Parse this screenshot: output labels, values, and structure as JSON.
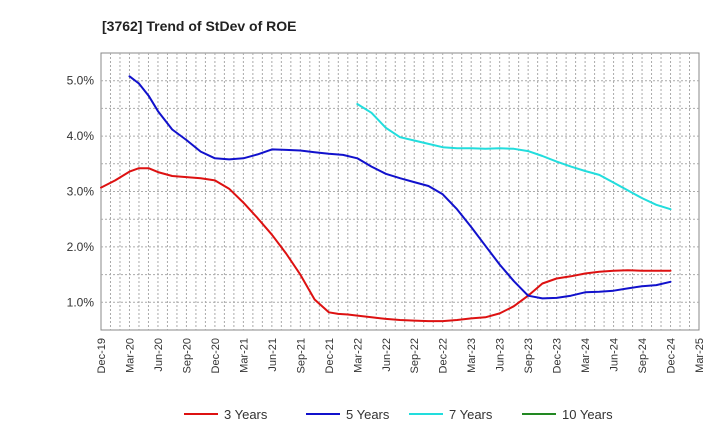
{
  "chart_data": {
    "type": "line",
    "title": "[3762]  Trend of StDev of ROE",
    "xlabel": "",
    "ylabel": "",
    "x_ticks": [
      "Dec-19",
      "Mar-20",
      "Jun-20",
      "Sep-20",
      "Dec-20",
      "Mar-21",
      "Jun-21",
      "Sep-21",
      "Dec-21",
      "Mar-22",
      "Jun-22",
      "Sep-22",
      "Dec-22",
      "Mar-23",
      "Jun-23",
      "Sep-23",
      "Dec-23",
      "Mar-24",
      "Jun-24",
      "Sep-24",
      "Dec-24",
      "Mar-25"
    ],
    "y_ticks": [
      "1.0%",
      "2.0%",
      "3.0%",
      "4.0%",
      "5.0%"
    ],
    "y_tick_values": [
      1.0,
      2.0,
      3.0,
      4.0,
      5.0
    ],
    "ylim": [
      0.5,
      5.5
    ],
    "grid": true,
    "legend_position": "bottom",
    "series": [
      {
        "name": "3 Years",
        "color": "#dd1111",
        "x": [
          0,
          0.5,
          1,
          1.33,
          1.67,
          2,
          2.5,
          3,
          3.5,
          4,
          4.5,
          5,
          5.5,
          6,
          6.5,
          7,
          7.5,
          8,
          8.33,
          8.67,
          9,
          9.5,
          10,
          10.5,
          11,
          11.5,
          12,
          12.5,
          13,
          13.5,
          14,
          14.5,
          15,
          15.5,
          16,
          16.5,
          17,
          17.5,
          18,
          18.5,
          19,
          19.5,
          20
        ],
        "values": [
          3.07,
          3.2,
          3.36,
          3.42,
          3.42,
          3.35,
          3.28,
          3.26,
          3.24,
          3.2,
          3.05,
          2.8,
          2.52,
          2.22,
          1.88,
          1.5,
          1.05,
          0.82,
          0.79,
          0.78,
          0.76,
          0.73,
          0.7,
          0.68,
          0.67,
          0.66,
          0.66,
          0.68,
          0.71,
          0.73,
          0.8,
          0.93,
          1.12,
          1.34,
          1.43,
          1.47,
          1.52,
          1.55,
          1.57,
          1.58,
          1.57,
          1.57,
          1.57
        ]
      },
      {
        "name": "5 Years",
        "color": "#1111cc",
        "x": [
          1,
          1.33,
          1.67,
          2,
          2.5,
          3,
          3.5,
          4,
          4.5,
          5,
          5.5,
          6,
          6.5,
          7,
          7.5,
          8,
          8.5,
          9,
          9.5,
          10,
          10.5,
          11,
          11.5,
          12,
          12.5,
          13,
          13.5,
          14,
          14.5,
          15,
          15.5,
          16,
          16.5,
          17,
          17.5,
          18,
          18.5,
          19,
          19.5,
          20
        ],
        "values": [
          5.08,
          4.95,
          4.73,
          4.45,
          4.12,
          3.93,
          3.72,
          3.6,
          3.58,
          3.6,
          3.67,
          3.76,
          3.75,
          3.74,
          3.71,
          3.68,
          3.66,
          3.6,
          3.45,
          3.32,
          3.24,
          3.17,
          3.1,
          2.95,
          2.68,
          2.36,
          2.02,
          1.68,
          1.38,
          1.12,
          1.07,
          1.08,
          1.12,
          1.18,
          1.19,
          1.21,
          1.25,
          1.29,
          1.31,
          1.37
        ]
      },
      {
        "name": "7 Years",
        "color": "#22dddd",
        "x": [
          9,
          9.5,
          10,
          10.5,
          11,
          11.5,
          12,
          12.5,
          13,
          13.5,
          14,
          14.5,
          15,
          15.5,
          16,
          16.5,
          17,
          17.5,
          18,
          18.5,
          19,
          19.5,
          20
        ],
        "values": [
          4.58,
          4.42,
          4.15,
          3.98,
          3.92,
          3.86,
          3.8,
          3.78,
          3.78,
          3.77,
          3.78,
          3.77,
          3.73,
          3.64,
          3.54,
          3.45,
          3.37,
          3.3,
          3.16,
          3.02,
          2.88,
          2.76,
          2.68
        ]
      },
      {
        "name": "10 Years",
        "color": "#228822",
        "x": [],
        "values": []
      }
    ]
  }
}
